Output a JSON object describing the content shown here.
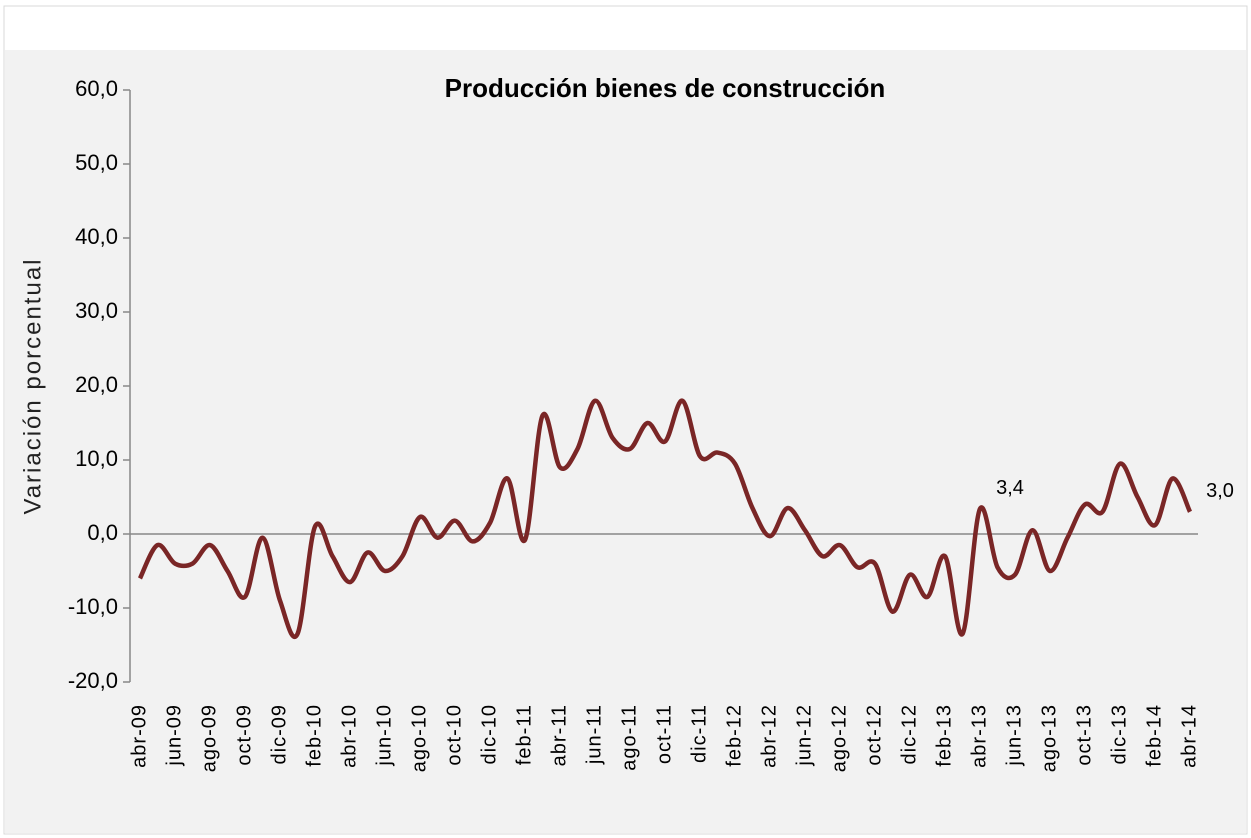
{
  "chart_data": {
    "type": "line",
    "title": "Producción bienes de construcción",
    "y_label": "Variación porcentual",
    "categories": [
      "abr-09",
      null,
      "jun-09",
      null,
      "ago-09",
      null,
      "oct-09",
      null,
      "dic-09",
      null,
      "feb-10",
      null,
      "abr-10",
      null,
      "jun-10",
      null,
      "ago-10",
      null,
      "oct-10",
      null,
      "dic-10",
      null,
      "feb-11",
      null,
      "abr-11",
      null,
      "jun-11",
      null,
      "ago-11",
      null,
      "oct-11",
      null,
      "dic-11",
      null,
      "feb-12",
      null,
      "abr-12",
      null,
      "jun-12",
      null,
      "ago-12",
      null,
      "oct-12",
      null,
      "dic-12",
      null,
      "feb-13",
      null,
      "abr-13",
      null,
      "jun-13",
      null,
      "ago-13",
      null,
      "oct-13",
      null,
      "dic-13",
      null,
      "feb-14",
      null,
      "abr-14"
    ],
    "series": [
      {
        "name": "Producción bienes de construcción",
        "color": "#7a2626",
        "values": [
          -6,
          -1.5,
          -4,
          -4,
          -1.5,
          -5,
          -8.5,
          -0.5,
          -9,
          -13.5,
          1,
          -3,
          -6.5,
          -2.5,
          -5,
          -3,
          2.3,
          -0.5,
          1.8,
          -1,
          1.5,
          7.5,
          -0.8,
          16,
          9,
          11.5,
          18,
          13,
          11.5,
          15,
          12.5,
          18,
          10.5,
          11,
          9.5,
          3.5,
          -0.3,
          3.5,
          0.5,
          -3,
          -1.5,
          -4.5,
          -4,
          -10.5,
          -5.5,
          -8.5,
          -3,
          -13.5,
          3.4,
          -4.5,
          -5.5,
          0.5,
          -5,
          -0.5,
          4,
          3,
          9.5,
          5,
          1.2,
          7.5,
          3.0
        ],
        "value_labels": [
          null,
          null,
          null,
          null,
          null,
          null,
          null,
          null,
          null,
          null,
          null,
          null,
          null,
          null,
          null,
          null,
          null,
          null,
          null,
          null,
          null,
          null,
          null,
          null,
          null,
          null,
          null,
          null,
          null,
          null,
          null,
          null,
          null,
          null,
          null,
          null,
          null,
          null,
          null,
          null,
          null,
          null,
          null,
          null,
          null,
          null,
          null,
          null,
          "3,4",
          null,
          null,
          null,
          null,
          null,
          null,
          null,
          null,
          null,
          null,
          null,
          "3,0"
        ]
      }
    ],
    "ylim": [
      -20,
      60
    ],
    "yticks": [
      {
        "value": -20,
        "label": "-20,0"
      },
      {
        "value": -10,
        "label": "-10,0"
      },
      {
        "value": 0,
        "label": "0,0"
      },
      {
        "value": 10,
        "label": "10,0"
      },
      {
        "value": 20,
        "label": "20,0"
      },
      {
        "value": 30,
        "label": "30,0"
      },
      {
        "value": 40,
        "label": "40,0"
      },
      {
        "value": 50,
        "label": "50,0"
      },
      {
        "value": 60,
        "label": "60,0"
      }
    ],
    "grid": false
  }
}
